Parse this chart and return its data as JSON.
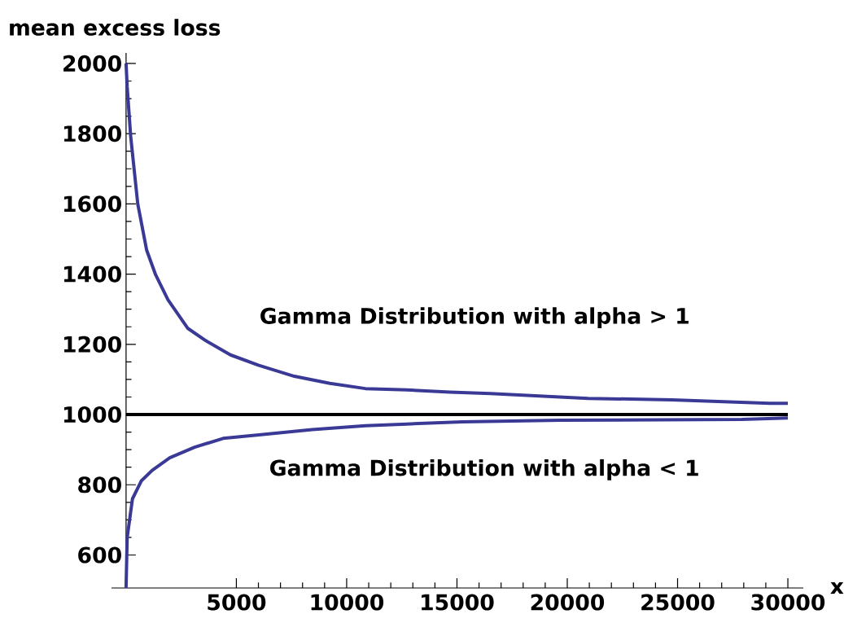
{
  "chart_data": {
    "type": "line",
    "xlabel": "x",
    "ylabel": "mean excess loss",
    "xlim": [
      -660,
      30700
    ],
    "ylim": [
      506,
      2030
    ],
    "xticks": [
      5000,
      10000,
      15000,
      20000,
      25000,
      30000
    ],
    "yticks": [
      600,
      800,
      1000,
      1200,
      1400,
      1600,
      1800,
      2000
    ],
    "ref_lines": [
      {
        "axis": "y",
        "value": 1000,
        "color": "#000000"
      }
    ],
    "series": [
      {
        "name": "Gamma Distribution with alpha > 1",
        "color": "#3a3a96",
        "x": [
          0,
          50,
          210,
          530,
          935,
          1340,
          1900,
          2790,
          3600,
          4730,
          6020,
          7630,
          9240,
          10850,
          12730,
          14680,
          16520,
          20950,
          24750,
          29180,
          30000
        ],
        "values": [
          2000,
          1934,
          1792,
          1600,
          1468,
          1398,
          1327,
          1246,
          1211,
          1170,
          1140,
          1109,
          1089,
          1074,
          1070,
          1064,
          1060,
          1046,
          1042,
          1032,
          1032
        ]
      },
      {
        "name": "Gamma Distribution with alpha < 1",
        "color": "#3a3a96",
        "x": [
          0,
          50,
          290,
          690,
          1180,
          1980,
          3110,
          4400,
          6020,
          8440,
          10850,
          12730,
          15250,
          19680,
          27910,
          30000
        ],
        "values": [
          506,
          649,
          760,
          811,
          841,
          877,
          907,
          932,
          942,
          957,
          968,
          973,
          979,
          984,
          986,
          990
        ]
      }
    ]
  }
}
